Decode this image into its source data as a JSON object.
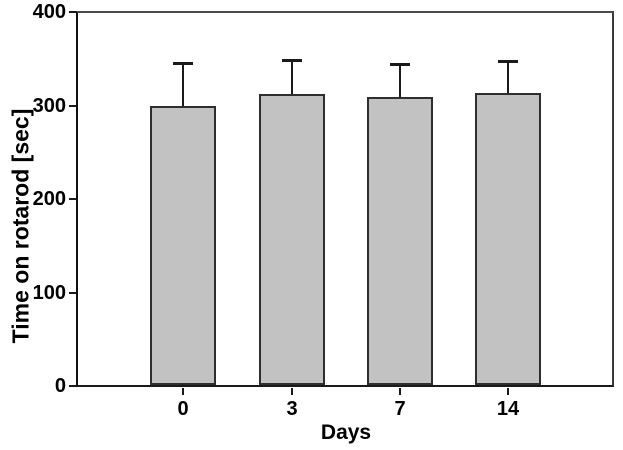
{
  "chart_data": {
    "type": "bar",
    "title": "",
    "xlabel": "Days",
    "ylabel": "Time on rotarod [sec]",
    "categories": [
      "0",
      "3",
      "7",
      "14"
    ],
    "values": [
      300,
      313,
      310,
      314
    ],
    "errors_up": [
      46,
      37,
      35,
      34
    ],
    "ylim": [
      0,
      400
    ],
    "yticks": [
      0,
      100,
      200,
      300,
      400
    ],
    "grid": false,
    "legend": false,
    "frame": "full-box",
    "bar_fill": "#c2c2c2",
    "bar_border": "#2e2e2e",
    "error_color": "#1a1a1a",
    "axis_color": "#1a1a1a",
    "text_color": "#000000",
    "background": "#ffffff"
  }
}
